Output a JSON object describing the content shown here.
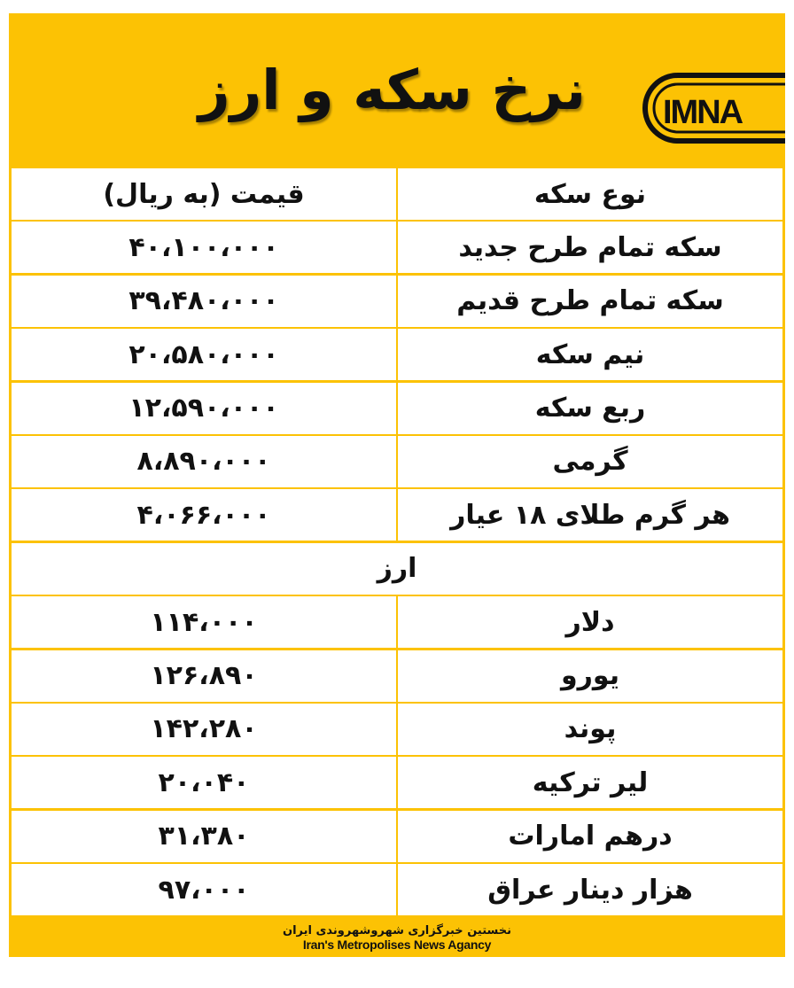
{
  "header": {
    "title": "نرخ سکه و ارز",
    "logo_text": "IMNA"
  },
  "table": {
    "col_name": "نوع سکه",
    "col_price": "قیمت (به ریال)",
    "coins": [
      {
        "name": "سکه تمام طرح جدید",
        "price": "۴۰،۱۰۰،۰۰۰"
      },
      {
        "name": "سکه تمام طرح قدیم",
        "price": "۳۹،۴۸۰،۰۰۰"
      },
      {
        "name": "نیم سکه",
        "price": "۲۰،۵۸۰،۰۰۰"
      },
      {
        "name": "ربع سکه",
        "price": "۱۲،۵۹۰،۰۰۰"
      },
      {
        "name": "گرمی",
        "price": "۸،۸۹۰،۰۰۰"
      },
      {
        "name": "هر گرم طلای ۱۸ عیار",
        "price": "۴،۰۶۶،۰۰۰"
      }
    ],
    "currency_section": "ارز",
    "currencies": [
      {
        "name": "دلار",
        "price": "۱۱۴،۰۰۰"
      },
      {
        "name": "یورو",
        "price": "۱۲۶،۸۹۰"
      },
      {
        "name": "پوند",
        "price": "۱۴۲،۲۸۰"
      },
      {
        "name": "لیر ترکیه",
        "price": "۲۰،۰۴۰"
      },
      {
        "name": "درهم امارات",
        "price": "۳۱،۳۸۰"
      },
      {
        "name": "هزار دینار عراق",
        "price": "۹۷،۰۰۰"
      }
    ]
  },
  "footer": {
    "tagline_fa": "نخستین خبرگزاری شهروشهروندی ایران",
    "tagline_en": "Iran's Metropolises News Agancy"
  },
  "colors": {
    "brand_yellow": "#fcc204",
    "text": "#111111"
  }
}
